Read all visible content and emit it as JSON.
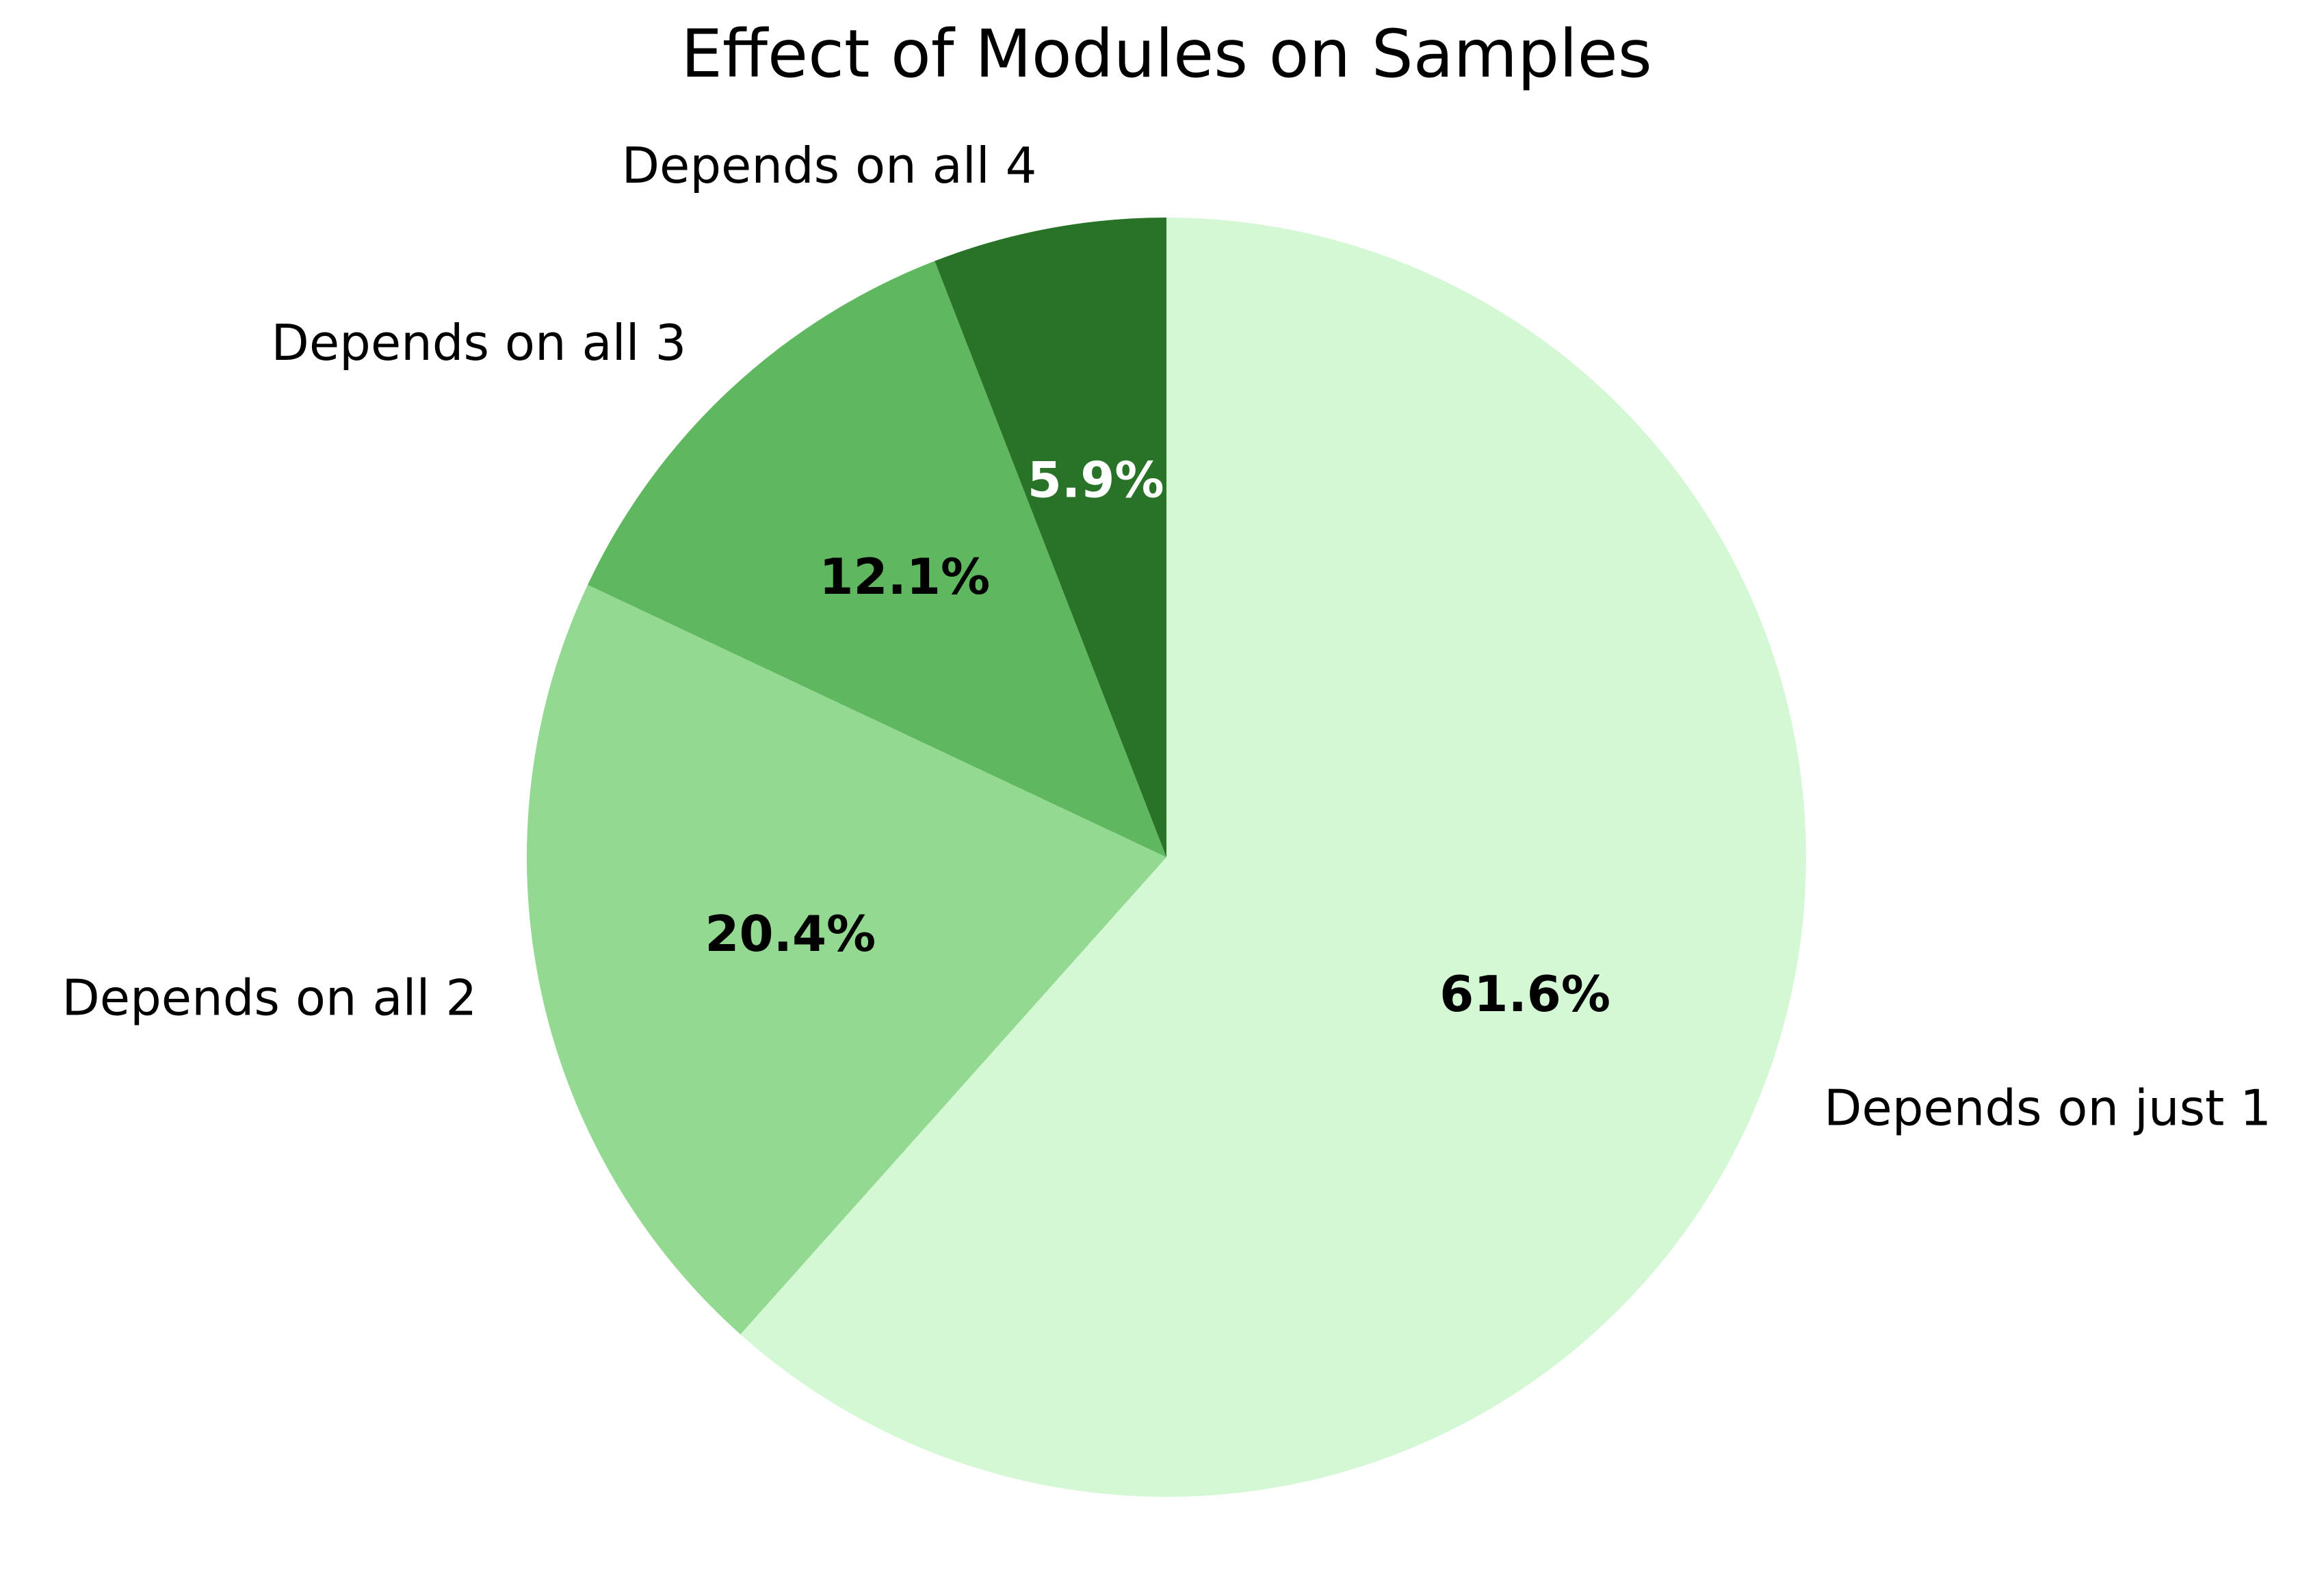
{
  "chart_data": {
    "type": "pie",
    "title": "Effect of Modules on Samples",
    "start_angle_deg": 90,
    "direction": "clockwise",
    "slices": [
      {
        "label": "Depends on just 1",
        "value": 61.6,
        "pct_label": "61.6%",
        "color": "#d4f7d4",
        "pct_color": "#000000"
      },
      {
        "label": "Depends on all 2",
        "value": 20.4,
        "pct_label": "20.4%",
        "color": "#93d991",
        "pct_color": "#000000"
      },
      {
        "label": "Depends on all 3",
        "value": 12.1,
        "pct_label": "12.1%",
        "color": "#5fb85f",
        "pct_color": "#000000"
      },
      {
        "label": "Depends on all 4",
        "value": 5.9,
        "pct_label": "5.9%",
        "color": "#287328",
        "pct_color": "#ffffff"
      }
    ]
  }
}
